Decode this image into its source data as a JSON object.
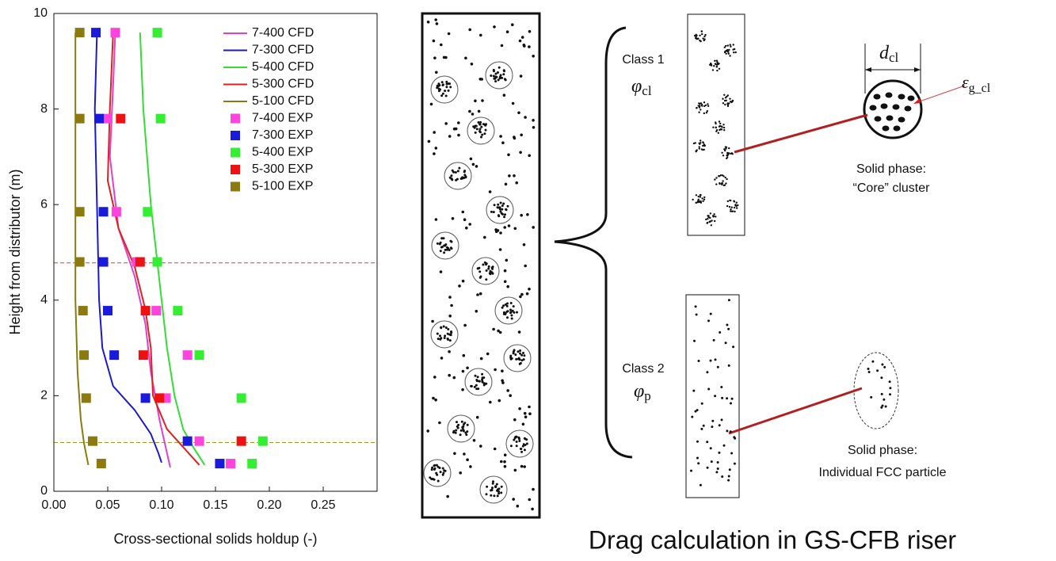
{
  "chart_data": {
    "type": "line",
    "x_label": "Cross-sectional solids holdup (-)",
    "y_label": "Height from distributor (m)",
    "xlim": [
      0,
      0.3
    ],
    "ylim": [
      0,
      10
    ],
    "xticks": [
      {
        "value": 0,
        "label": "0.00"
      },
      0.05,
      {
        "value": 0.1,
        "label": "0.10"
      },
      0.15,
      {
        "value": 0.2,
        "label": "0.20"
      },
      0.25
    ],
    "yticks": [
      0,
      2,
      4,
      6,
      8,
      10
    ],
    "legend": "upper right",
    "reference_lines": [
      {
        "y": 4.78,
        "color": "#d04040"
      },
      {
        "y": 1.02,
        "color": "#9a9a30"
      }
    ],
    "series": [
      {
        "name": "7-400 CFD",
        "style": "line",
        "color": "#e040d0",
        "x": [
          0.057,
          0.055,
          0.052,
          0.06,
          0.075,
          0.085,
          0.09,
          0.098,
          0.105,
          0.108
        ],
        "y": [
          9.6,
          8.5,
          7,
          5.5,
          4.5,
          3.5,
          2.5,
          1.5,
          0.8,
          0.5
        ]
      },
      {
        "name": "7-300 CFD",
        "style": "line",
        "color": "#1a1acc",
        "x": [
          0.04,
          0.038,
          0.04,
          0.042,
          0.045,
          0.055,
          0.075,
          0.09,
          0.097,
          0.1
        ],
        "y": [
          9.6,
          8,
          6,
          4,
          3,
          2.2,
          1.7,
          1.2,
          0.8,
          0.6
        ]
      },
      {
        "name": "5-400 CFD",
        "style": "line",
        "color": "#33dd33",
        "x": [
          0.08,
          0.083,
          0.09,
          0.095,
          0.1,
          0.105,
          0.112,
          0.12,
          0.13,
          0.14
        ],
        "y": [
          9.6,
          8,
          6,
          5,
          4,
          3,
          2,
          1.3,
          0.9,
          0.55
        ]
      },
      {
        "name": "5-300 CFD",
        "style": "line",
        "color": "#dd2222",
        "x": [
          0.055,
          0.052,
          0.05,
          0.06,
          0.075,
          0.085,
          0.09,
          0.092,
          0.105,
          0.125,
          0.135
        ],
        "y": [
          9.6,
          8,
          6.5,
          5.5,
          4.7,
          3.8,
          3,
          2,
          1.3,
          0.8,
          0.55
        ]
      },
      {
        "name": "5-100 CFD",
        "style": "line",
        "color": "#8a7a10",
        "x": [
          0.02,
          0.02,
          0.02,
          0.02,
          0.022,
          0.025,
          0.028,
          0.032
        ],
        "y": [
          9.6,
          8,
          6,
          4,
          2.5,
          1.5,
          1,
          0.55
        ]
      },
      {
        "name": "7-400 EXP",
        "style": "marker",
        "color": "#ff44dd",
        "x": [
          0.057,
          0.05,
          0.058,
          0.077,
          0.095,
          0.124,
          0.104,
          0.135,
          0.164
        ],
        "y": [
          9.6,
          7.8,
          5.85,
          4.8,
          3.78,
          2.85,
          1.95,
          1.05,
          0.58
        ]
      },
      {
        "name": "7-300 EXP",
        "style": "marker",
        "color": "#1a1add",
        "x": [
          0.039,
          0.042,
          0.046,
          0.046,
          0.05,
          0.056,
          0.085,
          0.124,
          0.154
        ],
        "y": [
          9.6,
          7.8,
          5.85,
          4.8,
          3.78,
          2.85,
          1.95,
          1.05,
          0.58
        ]
      },
      {
        "name": "5-400 EXP",
        "style": "marker",
        "color": "#33ee33",
        "x": [
          0.096,
          0.099,
          0.087,
          0.096,
          0.115,
          0.135,
          0.174,
          0.194,
          0.184
        ],
        "y": [
          9.6,
          7.8,
          5.85,
          4.8,
          3.78,
          2.85,
          1.95,
          1.05,
          0.58
        ]
      },
      {
        "name": "5-300 EXP",
        "style": "marker",
        "color": "#ee1111",
        "x": [
          0.062,
          0.08,
          0.085,
          0.083,
          0.098,
          0.174
        ],
        "y": [
          7.8,
          4.8,
          3.78,
          2.85,
          1.95,
          1.05
        ]
      },
      {
        "name": "5-100 EXP",
        "style": "marker",
        "color": "#8a7a10",
        "x": [
          0.024,
          0.024,
          0.024,
          0.024,
          0.027,
          0.028,
          0.03,
          0.036,
          0.044
        ],
        "y": [
          9.6,
          7.8,
          5.85,
          4.8,
          3.78,
          2.85,
          1.95,
          1.05,
          0.58
        ]
      }
    ]
  },
  "diagram": {
    "title": "Drag calculation in GS-CFB riser",
    "class1": {
      "label": "Class 1",
      "symbol": "φ",
      "subscript": "cl"
    },
    "class2": {
      "label": "Class 2",
      "symbol": "φ",
      "subscript": "p"
    },
    "cluster_diameter": {
      "symbol": "d",
      "subscript": "cl"
    },
    "cluster_voidage": {
      "symbol": "ε",
      "subscript": "g_cl"
    },
    "solid1": {
      "line1": "Solid phase:",
      "line2": "“Core” cluster"
    },
    "solid2": {
      "line1": "Solid phase:",
      "line2": "Individual FCC particle"
    }
  }
}
